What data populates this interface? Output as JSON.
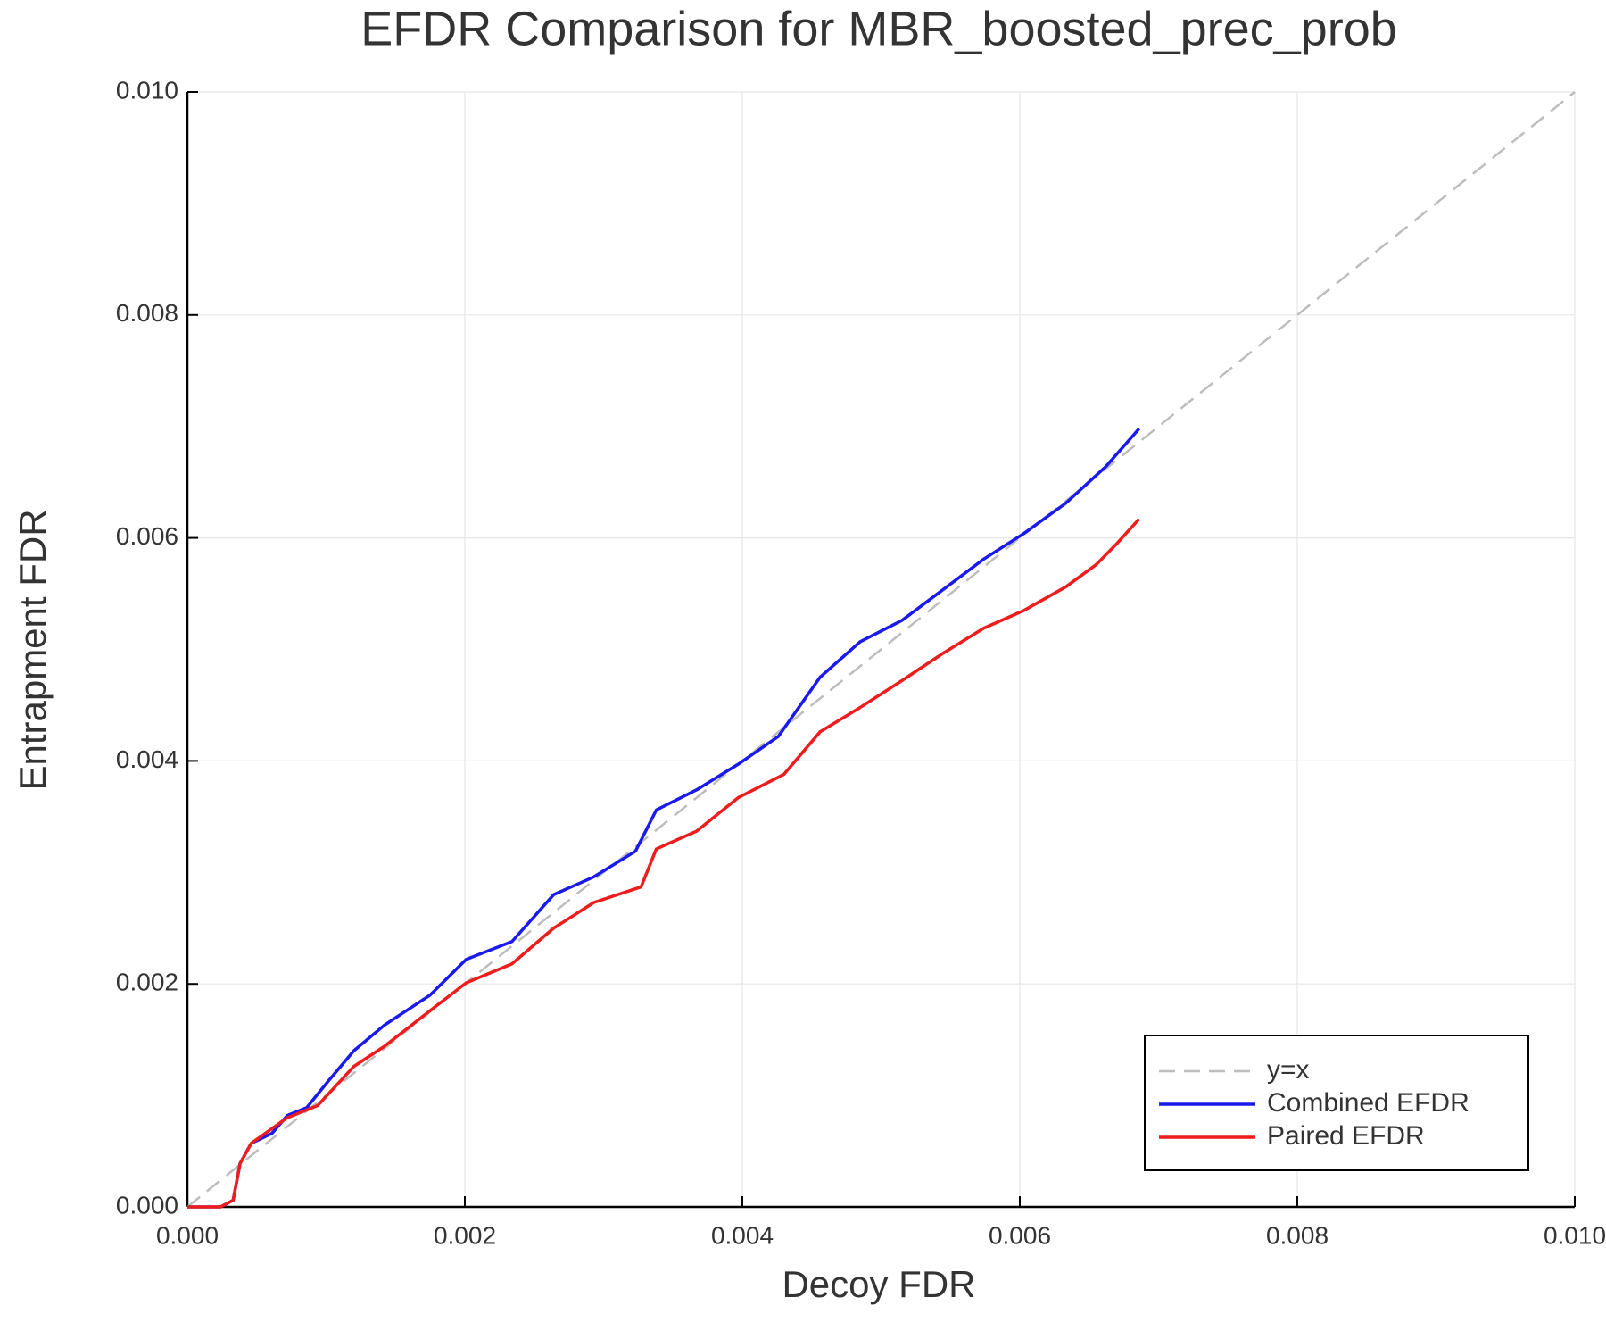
{
  "chart_data": {
    "type": "line",
    "title": "EFDR Comparison for MBR_boosted_prec_prob",
    "x_label": "Decoy FDR",
    "y_label": "Entrapment FDR",
    "xlim": [
      0,
      0.01
    ],
    "ylim": [
      0,
      0.01
    ],
    "xticks": [
      {
        "value": 0,
        "label": "0.000"
      },
      0.002,
      0.004,
      0.006,
      0.008,
      {
        "value": 0.01,
        "label": "0.010"
      }
    ],
    "yticks": [
      {
        "value": 0,
        "label": "0.000"
      },
      0.002,
      0.004,
      0.006,
      0.008,
      {
        "value": 0.01,
        "label": "0.010"
      }
    ],
    "grid": true,
    "legend": "bottom right",
    "series": [
      {
        "name": "y=x",
        "color": "#bdbdbd",
        "dashed": true,
        "x": [
          0,
          0.01
        ],
        "values": [
          0,
          0.01
        ]
      },
      {
        "name": "Combined EFDR",
        "color": "#1a1aee",
        "dashed": false,
        "x": [
          0,
          0.00024,
          0.00033,
          0.00038,
          0.00046,
          0.00061,
          0.00072,
          0.00086,
          0.00101,
          0.0012,
          0.00142,
          0.00175,
          0.00201,
          0.00234,
          0.00264,
          0.00293,
          0.00323,
          0.00338,
          0.00367,
          0.00397,
          0.00426,
          0.00456,
          0.00485,
          0.00515,
          0.00544,
          0.00574,
          0.00603,
          0.00633,
          0.00662,
          0.00686
        ],
        "values": [
          0,
          0,
          6e-05,
          0.00039,
          0.00057,
          0.00066,
          0.00082,
          0.00089,
          0.00112,
          0.0014,
          0.00163,
          0.0019,
          0.00222,
          0.00238,
          0.0028,
          0.00296,
          0.00319,
          0.00356,
          0.00374,
          0.00397,
          0.00422,
          0.00475,
          0.00507,
          0.00526,
          0.00553,
          0.00581,
          0.00604,
          0.00631,
          0.00664,
          0.00698
        ]
      },
      {
        "name": "Paired EFDR",
        "color": "#ee1c1c",
        "dashed": false,
        "x": [
          0,
          0.00024,
          0.00033,
          0.00038,
          0.00046,
          0.00072,
          0.00094,
          0.0012,
          0.00142,
          0.00175,
          0.00201,
          0.00234,
          0.00264,
          0.00293,
          0.00327,
          0.00338,
          0.00367,
          0.00397,
          0.0043,
          0.00456,
          0.00485,
          0.00515,
          0.00544,
          0.00574,
          0.00603,
          0.00633,
          0.00655,
          0.0067,
          0.00686
        ],
        "values": [
          0,
          0,
          6e-05,
          0.00039,
          0.00057,
          0.0008,
          0.00091,
          0.00126,
          0.00144,
          0.00176,
          0.00201,
          0.00218,
          0.0025,
          0.00273,
          0.00287,
          0.00321,
          0.00337,
          0.00367,
          0.00388,
          0.00426,
          0.00448,
          0.00472,
          0.00496,
          0.00519,
          0.00535,
          0.00556,
          0.00576,
          0.00595,
          0.00617
        ]
      }
    ]
  }
}
